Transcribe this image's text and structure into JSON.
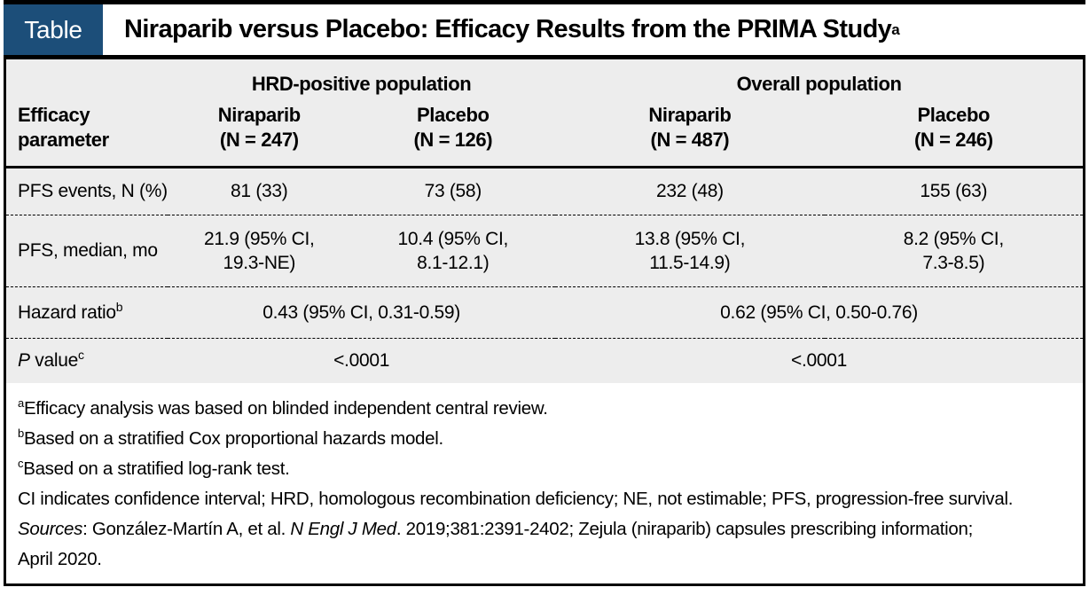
{
  "header": {
    "tag_label": "Table",
    "title": "Niraparib versus Placebo: Efficacy Results from the PRIMA Study",
    "title_superscript": "a"
  },
  "table": {
    "param_header": "Efficacy\nparameter",
    "groups": [
      {
        "label": "HRD-positive population"
      },
      {
        "label": "Overall population"
      }
    ],
    "columns": [
      {
        "label": "Niraparib\n(N = 247)"
      },
      {
        "label": "Placebo\n(N = 126)"
      },
      {
        "label": "Niraparib\n(N = 487)"
      },
      {
        "label": "Placebo\n(N = 246)"
      }
    ],
    "rows": {
      "pfs_events": {
        "label": "PFS events, N (%)",
        "values": [
          "81 (33)",
          "73 (58)",
          "232 (48)",
          "155 (63)"
        ]
      },
      "pfs_median": {
        "label": "PFS, median, mo",
        "values": [
          "21.9 (95% CI,\n19.3-NE)",
          "10.4 (95% CI,\n8.1-12.1)",
          "13.8 (95% CI,\n11.5-14.9)",
          "8.2 (95% CI,\n7.3-8.5)"
        ]
      },
      "hazard_ratio": {
        "label": "Hazard ratio",
        "sup": "b",
        "values": [
          "0.43 (95% CI, 0.31-0.59)",
          "0.62 (95% CI, 0.50-0.76)"
        ]
      },
      "p_value": {
        "label_italic": "P",
        "label_rest": " value",
        "sup": "c",
        "values": [
          "<.0001",
          "<.0001"
        ]
      }
    }
  },
  "footnotes": [
    {
      "sup": "a",
      "text": "Efficacy analysis was based on blinded independent central review."
    },
    {
      "sup": "b",
      "text": "Based on a stratified Cox proportional hazards model."
    },
    {
      "sup": "c",
      "text": "Based on a stratified log-rank test."
    }
  ],
  "abbreviations": "CI indicates confidence interval; HRD, homologous recombination deficiency; NE, not estimable; PFS, progression-free survival.",
  "sources": {
    "label": "Sources",
    "text_1": ": González-Martín A, et al. ",
    "journal": "N Engl J Med",
    "text_2": ". 2019;381:2391-2402; Zejula (niraparib) capsules prescribing information;",
    "text_3": "April 2020."
  },
  "colors": {
    "tag_blue": "#1c4e79",
    "row_gray": "#ededed",
    "border_black": "#000000"
  }
}
